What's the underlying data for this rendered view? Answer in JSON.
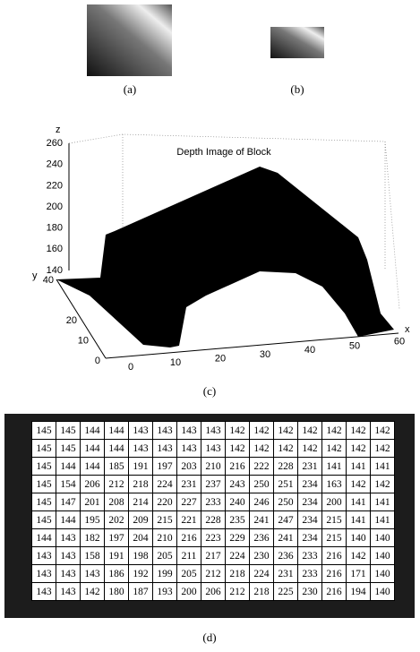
{
  "captions": [
    "(a)",
    "(b)",
    "(c)",
    "(d)"
  ],
  "plot": {
    "title": "Depth Image of Block",
    "z_label": "z",
    "y_label": "y",
    "x_label": "x",
    "zticks": [
      140,
      160,
      180,
      200,
      220,
      240,
      260
    ],
    "yticks": [
      0,
      10,
      20,
      40
    ],
    "xticks": [
      0,
      10,
      20,
      30,
      40,
      50,
      60
    ]
  },
  "table": {
    "rows": [
      [
        145,
        145,
        144,
        144,
        143,
        143,
        143,
        143,
        142,
        142,
        142,
        142,
        142,
        142,
        142
      ],
      [
        145,
        145,
        144,
        144,
        143,
        143,
        143,
        143,
        142,
        142,
        142,
        142,
        142,
        142,
        142
      ],
      [
        145,
        144,
        144,
        185,
        191,
        197,
        203,
        210,
        216,
        222,
        228,
        231,
        141,
        141,
        141
      ],
      [
        145,
        154,
        206,
        212,
        218,
        224,
        231,
        237,
        243,
        250,
        251,
        234,
        163,
        142,
        142
      ],
      [
        145,
        147,
        201,
        208,
        214,
        220,
        227,
        233,
        240,
        246,
        250,
        234,
        200,
        141,
        141
      ],
      [
        145,
        144,
        195,
        202,
        209,
        215,
        221,
        228,
        235,
        241,
        247,
        234,
        215,
        141,
        141
      ],
      [
        144,
        143,
        182,
        197,
        204,
        210,
        216,
        223,
        229,
        236,
        241,
        234,
        215,
        140,
        140
      ],
      [
        143,
        143,
        158,
        191,
        198,
        205,
        211,
        217,
        224,
        230,
        236,
        233,
        216,
        142,
        140
      ],
      [
        143,
        143,
        143,
        186,
        192,
        199,
        205,
        212,
        218,
        224,
        231,
        233,
        216,
        171,
        140
      ],
      [
        143,
        143,
        142,
        180,
        187,
        193,
        200,
        206,
        212,
        218,
        225,
        230,
        216,
        194,
        140
      ]
    ]
  }
}
